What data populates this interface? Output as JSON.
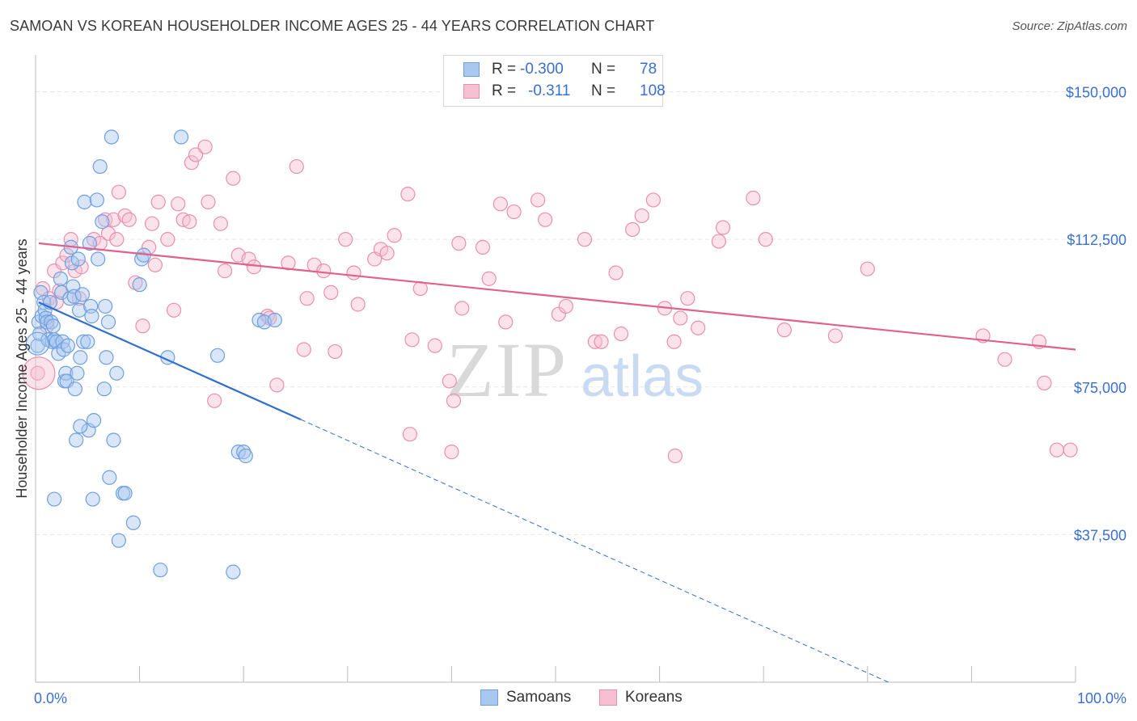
{
  "title": "SAMOAN VS KOREAN HOUSEHOLDER INCOME AGES 25 - 44 YEARS CORRELATION CHART",
  "source": "Source: ZipAtlas.com",
  "watermark": {
    "zip": "ZIP",
    "atlas": "atlas"
  },
  "legend": {
    "samoans": {
      "r_label": "R =",
      "r_value": "-0.300",
      "n_label": "N =",
      "n_value": "78"
    },
    "koreans": {
      "r_label": "R =",
      "r_value": "-0.311",
      "n_label": "N =",
      "n_value": "108"
    }
  },
  "bottom_legend": {
    "samoans": "Samoans",
    "koreans": "Koreans"
  },
  "colors": {
    "samoans_fill": "#a9c8f0",
    "samoans_stroke": "#6f9fde",
    "samoans_line": "#2f6fd1",
    "koreans_fill": "#f6bfd2",
    "koreans_stroke": "#ea8fae",
    "koreans_line": "#e0608e",
    "axis_label": "#3a6fd0",
    "grid": "#e6e6e6"
  },
  "chart_data": {
    "type": "scatter",
    "title": "SAMOAN VS KOREAN HOUSEHOLDER INCOME AGES 25 - 44 YEARS CORRELATION CHART",
    "xlabel": "",
    "ylabel": "Householder Income Ages 25 - 44 years",
    "xlim": [
      0,
      100
    ],
    "ylim": [
      0,
      157500
    ],
    "x_tick_labels": [
      "0.0%",
      "100.0%"
    ],
    "y_ticks": [
      37500,
      75000,
      112500,
      150000
    ],
    "y_tick_labels": [
      "$37,500",
      "$75,000",
      "$112,500",
      "$150,000"
    ],
    "grid": true,
    "legend_position": "top-center",
    "series": [
      {
        "name": "Samoans",
        "r": -0.3,
        "n": 78,
        "trend": {
          "x0": 0.3,
          "y0": 96500,
          "x_solid_end": 25.5,
          "x1": 82,
          "y1": 0
        },
        "points": [
          [
            0.2,
            85500
          ],
          [
            0.3,
            91500
          ],
          [
            0.4,
            88500
          ],
          [
            0.5,
            99000
          ],
          [
            0.6,
            93000
          ],
          [
            0.8,
            96500
          ],
          [
            0.9,
            94500
          ],
          [
            1.0,
            92500
          ],
          [
            1.1,
            91500
          ],
          [
            1.2,
            87000
          ],
          [
            1.4,
            96500
          ],
          [
            1.5,
            91500
          ],
          [
            1.6,
            86500
          ],
          [
            1.7,
            90500
          ],
          [
            1.8,
            87000
          ],
          [
            2.0,
            86500
          ],
          [
            2.2,
            83500
          ],
          [
            2.4,
            102500
          ],
          [
            2.5,
            99000
          ],
          [
            2.6,
            86500
          ],
          [
            2.7,
            84500
          ],
          [
            2.8,
            76500
          ],
          [
            2.9,
            78500
          ],
          [
            3.0,
            76500
          ],
          [
            3.1,
            85500
          ],
          [
            3.3,
            97500
          ],
          [
            3.4,
            110500
          ],
          [
            3.5,
            106500
          ],
          [
            3.6,
            100500
          ],
          [
            3.7,
            98000
          ],
          [
            3.8,
            74500
          ],
          [
            4.0,
            78500
          ],
          [
            4.1,
            107500
          ],
          [
            4.2,
            94500
          ],
          [
            4.3,
            82500
          ],
          [
            4.5,
            98500
          ],
          [
            4.6,
            86500
          ],
          [
            4.7,
            122000
          ],
          [
            5.0,
            86500
          ],
          [
            5.1,
            64000
          ],
          [
            5.2,
            111500
          ],
          [
            5.3,
            95500
          ],
          [
            5.4,
            93000
          ],
          [
            5.6,
            66500
          ],
          [
            5.9,
            122500
          ],
          [
            6.0,
            107500
          ],
          [
            6.2,
            131000
          ],
          [
            6.4,
            117000
          ],
          [
            6.6,
            74500
          ],
          [
            6.7,
            95500
          ],
          [
            6.8,
            82500
          ],
          [
            7.0,
            91500
          ],
          [
            7.1,
            52000
          ],
          [
            7.3,
            138500
          ],
          [
            7.5,
            61500
          ],
          [
            7.8,
            78500
          ],
          [
            8.4,
            48000
          ],
          [
            8.6,
            48000
          ],
          [
            10.0,
            101000
          ],
          [
            10.2,
            107500
          ],
          [
            10.4,
            108500
          ],
          [
            12.0,
            28500
          ],
          [
            12.7,
            82500
          ],
          [
            14.0,
            138500
          ],
          [
            17.5,
            83000
          ],
          [
            19.0,
            28000
          ],
          [
            19.5,
            58500
          ],
          [
            20.0,
            58500
          ],
          [
            20.2,
            57500
          ],
          [
            21.5,
            92000
          ],
          [
            22.0,
            91500
          ],
          [
            23.0,
            92000
          ],
          [
            1.8,
            46500
          ],
          [
            3.9,
            61500
          ],
          [
            5.5,
            46500
          ],
          [
            8.0,
            36000
          ],
          [
            9.4,
            40500
          ],
          [
            4.3,
            65000
          ]
        ]
      },
      {
        "name": "Koreans",
        "r": -0.311,
        "n": 108,
        "trend": {
          "x0": 0.3,
          "y0": 111500,
          "x1": 100,
          "y1": 84500
        },
        "points": [
          [
            0.2,
            78500
          ],
          [
            0.7,
            100000
          ],
          [
            1.1,
            90500
          ],
          [
            1.3,
            97500
          ],
          [
            1.8,
            104500
          ],
          [
            2.0,
            96500
          ],
          [
            2.3,
            99500
          ],
          [
            2.6,
            106500
          ],
          [
            3.0,
            108500
          ],
          [
            3.4,
            112500
          ],
          [
            3.8,
            104500
          ],
          [
            4.2,
            97500
          ],
          [
            4.4,
            105500
          ],
          [
            5.6,
            112500
          ],
          [
            6.2,
            111500
          ],
          [
            6.7,
            117500
          ],
          [
            7.0,
            114000
          ],
          [
            7.5,
            117500
          ],
          [
            7.8,
            112500
          ],
          [
            8.0,
            124500
          ],
          [
            8.6,
            118500
          ],
          [
            9.0,
            117500
          ],
          [
            9.6,
            101500
          ],
          [
            10.3,
            90500
          ],
          [
            10.9,
            110500
          ],
          [
            11.2,
            116500
          ],
          [
            11.5,
            106000
          ],
          [
            11.8,
            122000
          ],
          [
            12.7,
            112500
          ],
          [
            13.3,
            94500
          ],
          [
            13.7,
            121500
          ],
          [
            14.2,
            117500
          ],
          [
            14.8,
            117000
          ],
          [
            15.0,
            132000
          ],
          [
            15.4,
            134000
          ],
          [
            16.3,
            136000
          ],
          [
            16.6,
            122000
          ],
          [
            17.2,
            71500
          ],
          [
            17.8,
            116500
          ],
          [
            18.2,
            104500
          ],
          [
            19.0,
            128000
          ],
          [
            19.5,
            108500
          ],
          [
            20.5,
            107500
          ],
          [
            21.0,
            105500
          ],
          [
            22.3,
            93000
          ],
          [
            22.5,
            92500
          ],
          [
            23.2,
            75500
          ],
          [
            24.3,
            106500
          ],
          [
            25.1,
            131000
          ],
          [
            25.8,
            84500
          ],
          [
            26.1,
            97500
          ],
          [
            26.8,
            106000
          ],
          [
            27.7,
            104500
          ],
          [
            28.4,
            99000
          ],
          [
            28.8,
            84000
          ],
          [
            29.8,
            112500
          ],
          [
            30.6,
            104000
          ],
          [
            31.0,
            96000
          ],
          [
            32.6,
            107500
          ],
          [
            33.2,
            110000
          ],
          [
            33.8,
            109000
          ],
          [
            34.5,
            113500
          ],
          [
            35.8,
            124000
          ],
          [
            36.2,
            87000
          ],
          [
            37.0,
            100000
          ],
          [
            38.4,
            85500
          ],
          [
            39.8,
            76500
          ],
          [
            40.2,
            71500
          ],
          [
            40.7,
            111500
          ],
          [
            41.0,
            95000
          ],
          [
            43.0,
            110500
          ],
          [
            43.6,
            102500
          ],
          [
            44.7,
            121500
          ],
          [
            45.2,
            91500
          ],
          [
            46.0,
            119500
          ],
          [
            48.3,
            122500
          ],
          [
            49.0,
            117500
          ],
          [
            50.3,
            93500
          ],
          [
            51.0,
            95500
          ],
          [
            52.8,
            112500
          ],
          [
            53.8,
            86500
          ],
          [
            54.4,
            86500
          ],
          [
            55.8,
            104000
          ],
          [
            56.3,
            88500
          ],
          [
            57.4,
            115000
          ],
          [
            58.3,
            118500
          ],
          [
            59.4,
            122500
          ],
          [
            60.5,
            95000
          ],
          [
            61.4,
            86500
          ],
          [
            62.0,
            92500
          ],
          [
            62.7,
            97500
          ],
          [
            63.7,
            90000
          ],
          [
            65.7,
            112000
          ],
          [
            66.1,
            115500
          ],
          [
            69.0,
            123000
          ],
          [
            70.2,
            112500
          ],
          [
            72.0,
            89500
          ],
          [
            76.9,
            88000
          ],
          [
            80.0,
            105000
          ],
          [
            91.1,
            88000
          ],
          [
            93.2,
            82000
          ],
          [
            96.5,
            86500
          ],
          [
            97.0,
            76000
          ],
          [
            98.2,
            59000
          ],
          [
            99.5,
            59000
          ],
          [
            61.5,
            57500
          ],
          [
            36.0,
            63000
          ],
          [
            40.0,
            58500
          ]
        ]
      }
    ]
  }
}
